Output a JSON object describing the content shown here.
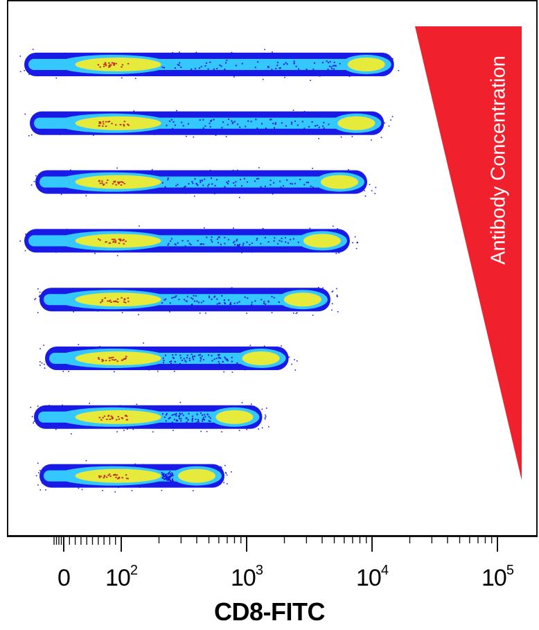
{
  "chart_data": {
    "type": "scatter",
    "subtype": "flow-cytometry density dot plots (stacked)",
    "title": "",
    "xlabel": "CD8-FITC",
    "ylabel": "",
    "x_scale": "biexponential/log",
    "x_ticks": [
      {
        "label": "0",
        "value": 0
      },
      {
        "label": "10",
        "exp": "2",
        "value": 100
      },
      {
        "label": "10",
        "exp": "3",
        "value": 1000
      },
      {
        "label": "10",
        "exp": "4",
        "value": 10000
      },
      {
        "label": "10",
        "exp": "5",
        "value": 100000
      }
    ],
    "xlim": [
      -60,
      200000
    ],
    "gradient_label": "Antibody Concentration",
    "gradient_direction": "decreasing from top to bottom",
    "grid": false,
    "series": [
      {
        "negative_peak": 85,
        "positive_peak": 9000
      },
      {
        "negative_peak": 85,
        "positive_peak": 7500
      },
      {
        "negative_peak": 85,
        "positive_peak": 5500
      },
      {
        "negative_peak": 85,
        "positive_peak": 4000
      },
      {
        "negative_peak": 85,
        "positive_peak": 2800
      },
      {
        "negative_peak": 85,
        "positive_peak": 1300
      },
      {
        "negative_peak": 85,
        "positive_peak": 800
      },
      {
        "negative_peak": 85,
        "positive_peak": 400
      }
    ],
    "colors": {
      "density_low": "#1a1ae6",
      "density_mid": "#35c7ff",
      "density_high": "#e6ea3a",
      "density_peak": "#c0281e",
      "triangle": "#f0202c",
      "axis": "#111111"
    }
  }
}
